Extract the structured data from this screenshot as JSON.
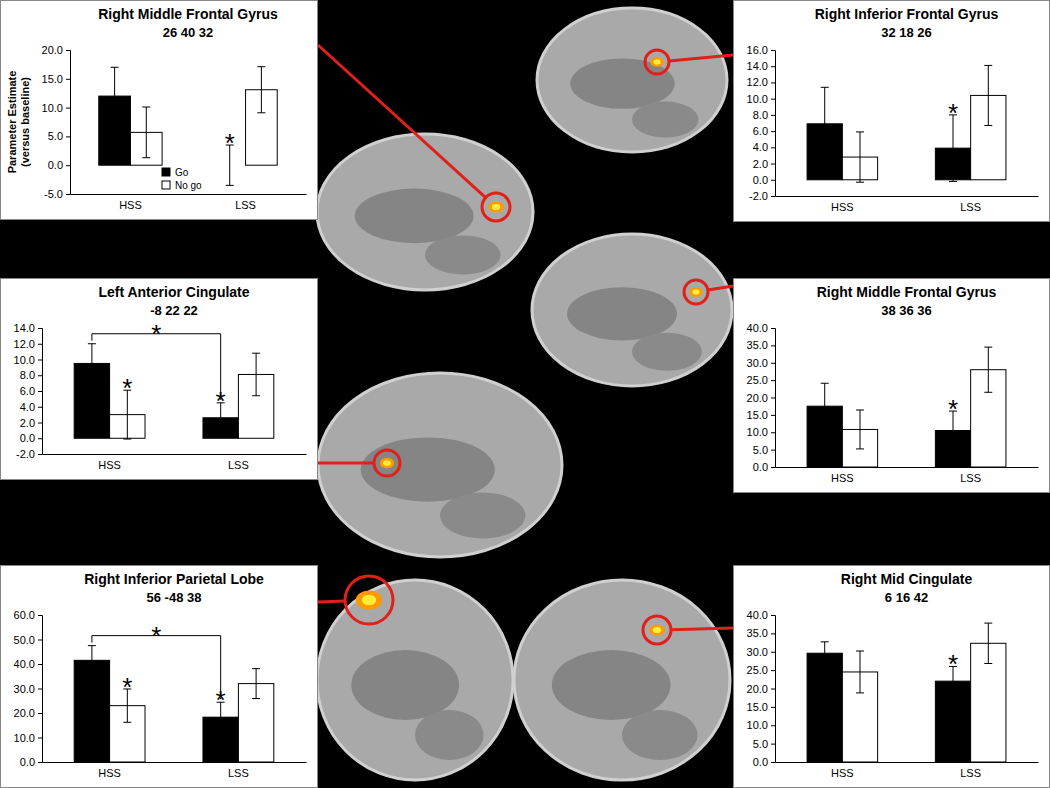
{
  "chart_data": [
    {
      "type": "bar",
      "title": "Right Middle Frontal Gyrus",
      "subtitle": "26 40 32",
      "y_label": "Parameter Estimate (versus baseline)",
      "categories": [
        "HSS",
        "LSS"
      ],
      "series": [
        {
          "name": "Go",
          "color": "#000000",
          "values": [
            12.0,
            0.0
          ],
          "errors": [
            5.0,
            3.5
          ]
        },
        {
          "name": "No go",
          "color": "#ffffff",
          "values": [
            5.7,
            13.1
          ],
          "errors": [
            4.4,
            4.0
          ]
        }
      ],
      "ylim": [
        -5,
        20
      ],
      "yticks": [
        {
          "value": -5,
          "label": "-5.0"
        },
        {
          "value": 0,
          "label": "0.0"
        },
        {
          "value": 5,
          "label": "5.0"
        },
        {
          "value": 10,
          "label": "10.0"
        },
        {
          "value": 15,
          "label": "15.0"
        },
        {
          "value": 20,
          "label": "20.0"
        }
      ],
      "legend": "bottom",
      "annotations": [
        {
          "text": "*",
          "category": "LSS",
          "series": "Go"
        }
      ]
    },
    {
      "type": "bar",
      "title": "Right Inferior Frontal Gyrus",
      "subtitle": "32 18 26",
      "categories": [
        "HSS",
        "LSS"
      ],
      "series": [
        {
          "name": "Go",
          "color": "#000000",
          "values": [
            6.9,
            3.9
          ],
          "errors": [
            4.5,
            4.1
          ]
        },
        {
          "name": "No go",
          "color": "#ffffff",
          "values": [
            2.8,
            10.4
          ],
          "errors": [
            3.1,
            3.7
          ]
        }
      ],
      "ylim": [
        -2,
        16
      ],
      "yticks": [
        {
          "value": -2,
          "label": "-2.0"
        },
        {
          "value": 0,
          "label": "0.0"
        },
        {
          "value": 2,
          "label": "2.0"
        },
        {
          "value": 4,
          "label": "4.0"
        },
        {
          "value": 6,
          "label": "6.0"
        },
        {
          "value": 8,
          "label": "8.0"
        },
        {
          "value": 10,
          "label": "10.0"
        },
        {
          "value": 12,
          "label": "12.0"
        },
        {
          "value": 14,
          "label": "14.0"
        },
        {
          "value": 16,
          "label": "16.0"
        }
      ],
      "annotations": [
        {
          "text": "*",
          "category": "LSS",
          "series": "Go"
        }
      ]
    },
    {
      "type": "bar",
      "title": "Left Anterior Cingulate",
      "subtitle": "-8 22 22",
      "categories": [
        "HSS",
        "LSS"
      ],
      "series": [
        {
          "name": "Go",
          "color": "#000000",
          "values": [
            9.5,
            2.6
          ],
          "errors": [
            2.5,
            1.9
          ]
        },
        {
          "name": "No go",
          "color": "#ffffff",
          "values": [
            3.0,
            8.1
          ],
          "errors": [
            3.1,
            2.7
          ]
        }
      ],
      "ylim": [
        -2,
        14
      ],
      "yticks": [
        {
          "value": -2,
          "label": "-2.0"
        },
        {
          "value": 0,
          "label": "0.0"
        },
        {
          "value": 2,
          "label": "2.0"
        },
        {
          "value": 4,
          "label": "4.0"
        },
        {
          "value": 6,
          "label": "6.0"
        },
        {
          "value": 8,
          "label": "8.0"
        },
        {
          "value": 10,
          "label": "10.0"
        },
        {
          "value": 12,
          "label": "12.0"
        },
        {
          "value": 14,
          "label": "14.0"
        }
      ],
      "annotations": [
        {
          "text": "*",
          "category": "HSS",
          "series": "No go"
        },
        {
          "text": "*",
          "category": "LSS",
          "series": "Go"
        },
        {
          "text": "*",
          "between": [
            "HSS",
            "LSS"
          ],
          "series": "Go"
        }
      ]
    },
    {
      "type": "bar",
      "title": "Right Middle Frontal Gyrus",
      "subtitle": "38 36 36",
      "categories": [
        "HSS",
        "LSS"
      ],
      "series": [
        {
          "name": "Go",
          "color": "#000000",
          "values": [
            17.5,
            10.5
          ],
          "errors": [
            6.6,
            5.6
          ]
        },
        {
          "name": "No go",
          "color": "#ffffff",
          "values": [
            10.8,
            28.0
          ],
          "errors": [
            5.6,
            6.5
          ]
        }
      ],
      "ylim": [
        0,
        40
      ],
      "yticks": [
        {
          "value": 0,
          "label": "0.0"
        },
        {
          "value": 5,
          "label": "5.0"
        },
        {
          "value": 10,
          "label": "10.0"
        },
        {
          "value": 15,
          "label": "15.0"
        },
        {
          "value": 20,
          "label": "20.0"
        },
        {
          "value": 25,
          "label": "25.0"
        },
        {
          "value": 30,
          "label": "30.0"
        },
        {
          "value": 35,
          "label": "35.0"
        },
        {
          "value": 40,
          "label": "40.0"
        }
      ],
      "annotations": [
        {
          "text": "*",
          "category": "LSS",
          "series": "Go"
        }
      ]
    },
    {
      "type": "bar",
      "title": "Right Inferior Parietal Lobe",
      "subtitle": "56 -48 38",
      "categories": [
        "HSS",
        "LSS"
      ],
      "series": [
        {
          "name": "Go",
          "color": "#000000",
          "values": [
            41.5,
            18.3
          ],
          "errors": [
            6.0,
            6.1
          ]
        },
        {
          "name": "No go",
          "color": "#ffffff",
          "values": [
            23.0,
            32.0
          ],
          "errors": [
            6.8,
            6.1
          ]
        }
      ],
      "ylim": [
        0,
        60
      ],
      "yticks": [
        {
          "value": 0,
          "label": "0.0"
        },
        {
          "value": 10,
          "label": "10.0"
        },
        {
          "value": 20,
          "label": "20.0"
        },
        {
          "value": 30,
          "label": "30.0"
        },
        {
          "value": 40,
          "label": "40.0"
        },
        {
          "value": 50,
          "label": "50.0"
        },
        {
          "value": 60,
          "label": "60.0"
        }
      ],
      "annotations": [
        {
          "text": "*",
          "category": "HSS",
          "series": "No go"
        },
        {
          "text": "*",
          "category": "LSS",
          "series": "Go"
        },
        {
          "text": "*",
          "between": [
            "HSS",
            "LSS"
          ],
          "series": "Go"
        }
      ]
    },
    {
      "type": "bar",
      "title": "Right Mid Cingulate",
      "subtitle": "6 16 42",
      "categories": [
        "HSS",
        "LSS"
      ],
      "series": [
        {
          "name": "Go",
          "color": "#000000",
          "values": [
            29.6,
            22.0
          ],
          "errors": [
            3.1,
            4.0
          ]
        },
        {
          "name": "No go",
          "color": "#ffffff",
          "values": [
            24.5,
            32.3
          ],
          "errors": [
            5.7,
            5.5
          ]
        }
      ],
      "ylim": [
        0,
        40
      ],
      "yticks": [
        {
          "value": 0,
          "label": "0.0"
        },
        {
          "value": 5,
          "label": "5.0"
        },
        {
          "value": 10,
          "label": "10.0"
        },
        {
          "value": 15,
          "label": "15.0"
        },
        {
          "value": 20,
          "label": "20.0"
        },
        {
          "value": 25,
          "label": "25.0"
        },
        {
          "value": 30,
          "label": "30.0"
        },
        {
          "value": 35,
          "label": "35.0"
        },
        {
          "value": 40,
          "label": "40.0"
        }
      ],
      "annotations": [
        {
          "text": "*",
          "category": "LSS",
          "series": "Go"
        }
      ]
    }
  ]
}
